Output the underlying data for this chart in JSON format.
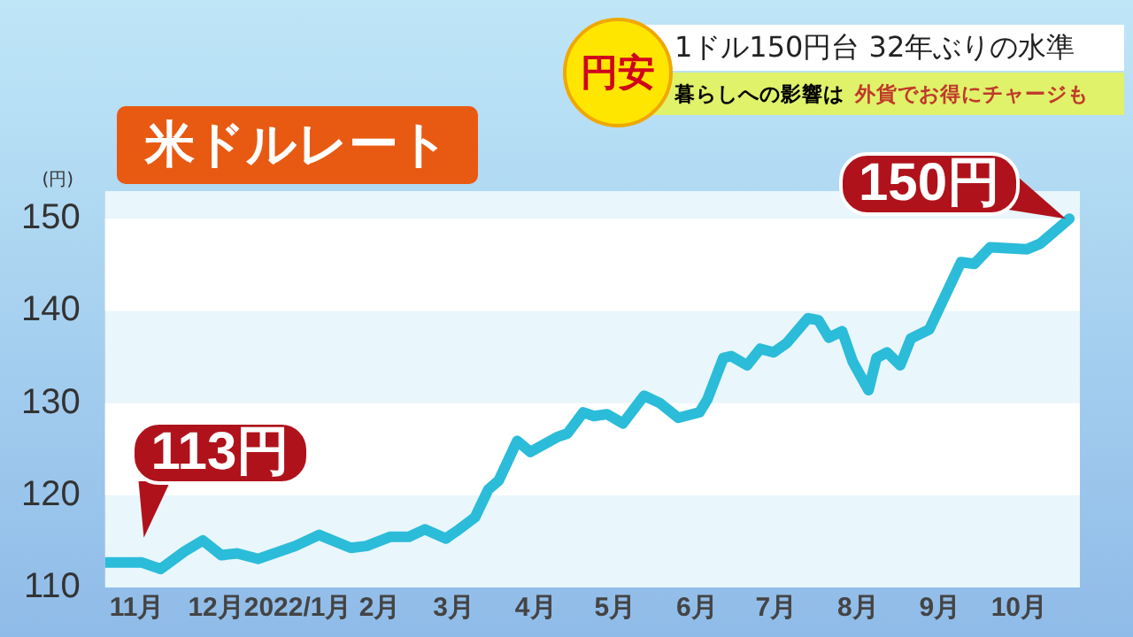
{
  "chart_data": {
    "type": "line",
    "title": "米ドルレート",
    "ylabel": "(円)",
    "annotations": [
      "円安",
      "1ドル150円台 32年ぶりの水準",
      "暮らしへの影響は",
      "外貨でお得にチャージも",
      {
        "text": "113円",
        "x": "2021-11-03",
        "y": 112.7
      },
      {
        "text": "150円",
        "x": "2022-10-20",
        "y": 150
      }
    ],
    "series": [
      {
        "color": "#2bbcd9",
        "x": [
          "2021-10-20",
          "2021-11-03",
          "2021-11-10",
          "2021-11-19",
          "2021-11-26",
          "2021-12-03",
          "2021-12-09",
          "2021-12-17",
          "2021-12-31",
          "2022-01-09",
          "2022-01-21",
          "2022-01-27",
          "2022-02-05",
          "2022-02-12",
          "2022-02-18",
          "2022-02-26",
          "2022-03-02",
          "2022-03-09",
          "2022-03-14",
          "2022-03-18",
          "2022-03-25",
          "2022-03-30",
          "2022-04-09",
          "2022-04-13",
          "2022-04-19",
          "2022-04-23",
          "2022-04-28",
          "2022-05-04",
          "2022-05-12",
          "2022-05-18",
          "2022-05-25",
          "2022-06-02",
          "2022-06-05",
          "2022-06-11",
          "2022-06-14",
          "2022-06-20",
          "2022-06-25",
          "2022-06-30",
          "2022-07-05",
          "2022-07-13",
          "2022-07-17",
          "2022-07-21",
          "2022-07-26",
          "2022-07-30",
          "2022-08-05",
          "2022-08-08",
          "2022-08-12",
          "2022-08-17",
          "2022-08-21",
          "2022-08-28",
          "2022-09-09",
          "2022-09-14",
          "2022-09-20",
          "2022-10-04",
          "2022-10-09",
          "2022-10-20"
        ],
        "values": [
          112.7,
          112.7,
          112.0,
          113.9,
          115.1,
          113.5,
          113.7,
          113.1,
          114.5,
          115.7,
          114.3,
          114.5,
          115.5,
          115.5,
          116.3,
          115.3,
          116.1,
          117.6,
          120.6,
          121.6,
          125.9,
          124.7,
          126.3,
          126.7,
          129.0,
          128.6,
          128.8,
          127.8,
          130.8,
          130.0,
          128.4,
          129.0,
          130.4,
          134.9,
          135.1,
          134.1,
          135.9,
          135.5,
          136.5,
          139.2,
          139.0,
          137.1,
          137.8,
          134.5,
          131.4,
          134.9,
          135.5,
          134.1,
          137.0,
          138.0,
          145.3,
          145.1,
          146.9,
          146.7,
          147.3,
          150
        ]
      }
    ],
    "xlim": [
      "2021-10-20",
      "2022-10-24"
    ],
    "xticks": [
      {
        "value": "2021-11-01",
        "label": "11月"
      },
      {
        "value": "2021-12-01",
        "label": "12月"
      },
      {
        "value": "2022-01-01",
        "label": "2022/1月"
      },
      {
        "value": "2022-02-01",
        "label": "2月"
      },
      {
        "value": "2022-03-01",
        "label": "3月"
      },
      {
        "value": "2022-04-01",
        "label": "4月"
      },
      {
        "value": "2022-05-01",
        "label": "5月"
      },
      {
        "value": "2022-06-01",
        "label": "6月"
      },
      {
        "value": "2022-07-01",
        "label": "7月"
      },
      {
        "value": "2022-08-01",
        "label": "8月"
      },
      {
        "value": "2022-09-01",
        "label": "9月"
      },
      {
        "value": "2022-10-01",
        "label": "10月"
      }
    ],
    "ylim": [
      110,
      153
    ],
    "yticks": [
      110,
      120,
      130,
      140,
      150
    ],
    "legend": false,
    "marker": "none",
    "line_style": "solid"
  }
}
